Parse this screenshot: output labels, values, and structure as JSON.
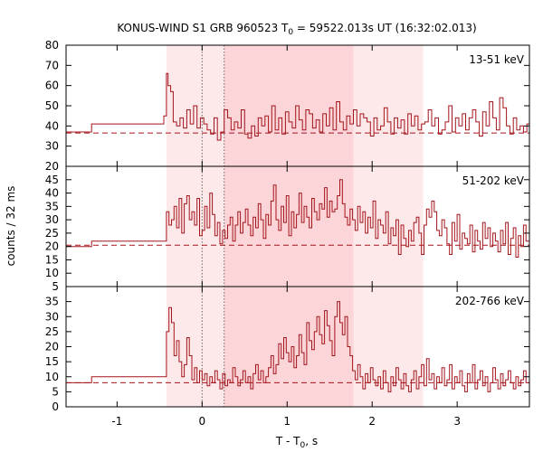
{
  "title": {
    "pre": "KONUS-WIND S1 GRB 960523 T",
    "sub": "0",
    "post": " = 59522.013s UT (16:32:02.013)"
  },
  "ylabel": "counts / 32 ms",
  "xlabel": {
    "pre": "T - T",
    "sub": "0",
    "post": ", s"
  },
  "colors": {
    "curve": "#a4141c",
    "background_line": "#a4141c",
    "light_band": "#fde9ea",
    "dark_band": "#fbd5d8",
    "axis": "#000000",
    "marker": "#666666"
  },
  "chart_data": {
    "type": "line",
    "step": true,
    "x_range": [
      -1.6,
      3.85
    ],
    "x_ticks": [
      -1,
      0,
      1,
      2,
      3
    ],
    "x_tick_labels": [
      "-1",
      "0",
      "1",
      "2",
      "3"
    ],
    "bands": {
      "light": [
        -0.42,
        2.6
      ],
      "dark": [
        0.26,
        1.78
      ]
    },
    "markers_x": [
      0,
      0.26
    ],
    "panels": [
      {
        "name": "13-51 keV",
        "ylim": [
          20,
          80
        ],
        "yticks": [
          20,
          30,
          40,
          50,
          60,
          70,
          80
        ],
        "background": 36.5,
        "x": [
          -1.6,
          -1.3,
          -0.45,
          -0.42,
          -0.4,
          -0.37,
          -0.34,
          -0.3,
          -0.26,
          -0.22,
          -0.18,
          -0.14,
          -0.1,
          -0.06,
          -0.02,
          0.02,
          0.06,
          0.1,
          0.14,
          0.18,
          0.22,
          0.26,
          0.3,
          0.34,
          0.38,
          0.42,
          0.46,
          0.5,
          0.54,
          0.58,
          0.62,
          0.66,
          0.7,
          0.74,
          0.78,
          0.82,
          0.86,
          0.9,
          0.94,
          0.98,
          1.02,
          1.06,
          1.1,
          1.14,
          1.18,
          1.22,
          1.26,
          1.3,
          1.34,
          1.38,
          1.42,
          1.46,
          1.5,
          1.54,
          1.58,
          1.62,
          1.66,
          1.7,
          1.74,
          1.78,
          1.82,
          1.86,
          1.9,
          1.94,
          1.98,
          2.02,
          2.06,
          2.1,
          2.14,
          2.18,
          2.22,
          2.26,
          2.3,
          2.34,
          2.38,
          2.42,
          2.46,
          2.5,
          2.54,
          2.58,
          2.62,
          2.66,
          2.7,
          2.74,
          2.78,
          2.82,
          2.86,
          2.9,
          2.94,
          2.98,
          3.02,
          3.06,
          3.1,
          3.14,
          3.18,
          3.22,
          3.26,
          3.3,
          3.34,
          3.38,
          3.42,
          3.46,
          3.5,
          3.54,
          3.58,
          3.62,
          3.66,
          3.7,
          3.74,
          3.78,
          3.82
        ],
        "y": [
          37,
          41,
          45,
          66,
          60,
          57,
          42,
          40,
          44,
          39,
          48,
          41,
          50,
          39,
          44,
          41,
          38,
          36,
          44,
          33,
          37,
          48,
          44,
          38,
          42,
          39,
          48,
          36,
          34,
          40,
          35,
          44,
          40,
          45,
          37,
          50,
          38,
          44,
          36,
          47,
          42,
          39,
          50,
          43,
          38,
          48,
          46,
          39,
          43,
          37,
          46,
          40,
          49,
          38,
          52,
          42,
          38,
          45,
          41,
          48,
          40,
          46,
          44,
          42,
          35,
          44,
          38,
          40,
          49,
          42,
          36,
          44,
          39,
          43,
          36,
          46,
          40,
          45,
          38,
          41,
          42,
          48,
          40,
          44,
          36,
          38,
          42,
          50,
          37,
          44,
          40,
          46,
          38,
          44,
          48,
          42,
          35,
          47,
          40,
          52,
          44,
          38,
          54,
          49,
          40,
          36,
          44,
          38,
          40,
          37,
          41
        ]
      },
      {
        "name": "51-202 keV",
        "ylim": [
          5,
          50
        ],
        "yticks": [
          5,
          10,
          15,
          20,
          25,
          30,
          35,
          40,
          45
        ],
        "background": 20.5,
        "x": [
          -1.6,
          -1.3,
          -0.45,
          -0.42,
          -0.39,
          -0.36,
          -0.33,
          -0.3,
          -0.27,
          -0.24,
          -0.21,
          -0.18,
          -0.15,
          -0.12,
          -0.09,
          -0.06,
          -0.03,
          0.0,
          0.03,
          0.06,
          0.09,
          0.12,
          0.15,
          0.18,
          0.21,
          0.24,
          0.27,
          0.3,
          0.33,
          0.36,
          0.39,
          0.42,
          0.45,
          0.48,
          0.51,
          0.54,
          0.57,
          0.6,
          0.63,
          0.66,
          0.69,
          0.72,
          0.75,
          0.78,
          0.81,
          0.84,
          0.87,
          0.9,
          0.93,
          0.96,
          0.99,
          1.02,
          1.05,
          1.08,
          1.11,
          1.14,
          1.17,
          1.2,
          1.23,
          1.26,
          1.29,
          1.32,
          1.35,
          1.38,
          1.41,
          1.44,
          1.47,
          1.5,
          1.53,
          1.56,
          1.59,
          1.62,
          1.65,
          1.68,
          1.71,
          1.74,
          1.77,
          1.8,
          1.83,
          1.86,
          1.89,
          1.92,
          1.95,
          1.98,
          2.01,
          2.04,
          2.07,
          2.1,
          2.13,
          2.16,
          2.19,
          2.22,
          2.25,
          2.28,
          2.31,
          2.34,
          2.37,
          2.4,
          2.43,
          2.46,
          2.49,
          2.52,
          2.55,
          2.58,
          2.61,
          2.64,
          2.67,
          2.7,
          2.73,
          2.76,
          2.79,
          2.82,
          2.85,
          2.88,
          2.91,
          2.94,
          2.97,
          3.0,
          3.03,
          3.06,
          3.09,
          3.12,
          3.15,
          3.18,
          3.21,
          3.24,
          3.27,
          3.3,
          3.33,
          3.36,
          3.39,
          3.42,
          3.45,
          3.48,
          3.51,
          3.54,
          3.57,
          3.6,
          3.63,
          3.66,
          3.69,
          3.72,
          3.75,
          3.78,
          3.81
        ],
        "y": [
          20,
          22,
          22,
          33,
          28,
          30,
          35,
          27,
          38,
          25,
          36,
          39,
          30,
          33,
          28,
          38,
          24,
          26,
          35,
          27,
          40,
          32,
          24,
          29,
          21,
          26,
          23,
          28,
          31,
          22,
          28,
          33,
          25,
          29,
          34,
          28,
          24,
          31,
          27,
          36,
          30,
          23,
          32,
          28,
          37,
          43,
          30,
          26,
          35,
          29,
          39,
          24,
          33,
          27,
          32,
          40,
          29,
          35,
          31,
          27,
          38,
          33,
          30,
          36,
          34,
          42,
          31,
          37,
          33,
          34,
          39,
          45,
          36,
          31,
          28,
          34,
          30,
          26,
          35,
          29,
          33,
          25,
          31,
          27,
          37,
          23,
          30,
          28,
          25,
          33,
          21,
          27,
          24,
          30,
          17,
          28,
          23,
          20,
          26,
          22,
          29,
          31,
          25,
          17,
          28,
          34,
          31,
          37,
          33,
          26,
          24,
          30,
          27,
          21,
          17,
          29,
          22,
          32,
          19,
          25,
          23,
          21,
          28,
          18,
          26,
          22,
          19,
          29,
          23,
          27,
          20,
          25,
          22,
          18,
          26,
          21,
          29,
          17,
          23,
          27,
          16,
          24,
          20,
          28,
          22
        ]
      },
      {
        "name": "202-766 keV",
        "ylim": [
          0,
          40
        ],
        "yticks": [
          0,
          5,
          10,
          15,
          20,
          25,
          30,
          35
        ],
        "background": 8,
        "x": [
          -1.6,
          -1.3,
          -0.45,
          -0.42,
          -0.39,
          -0.36,
          -0.33,
          -0.3,
          -0.27,
          -0.24,
          -0.21,
          -0.18,
          -0.15,
          -0.12,
          -0.09,
          -0.06,
          -0.03,
          0.0,
          0.03,
          0.06,
          0.09,
          0.12,
          0.15,
          0.18,
          0.21,
          0.24,
          0.27,
          0.3,
          0.33,
          0.36,
          0.39,
          0.42,
          0.45,
          0.48,
          0.51,
          0.54,
          0.57,
          0.6,
          0.63,
          0.66,
          0.69,
          0.72,
          0.75,
          0.78,
          0.81,
          0.84,
          0.87,
          0.9,
          0.93,
          0.96,
          0.99,
          1.02,
          1.05,
          1.08,
          1.11,
          1.14,
          1.17,
          1.2,
          1.23,
          1.26,
          1.29,
          1.32,
          1.35,
          1.38,
          1.41,
          1.44,
          1.47,
          1.5,
          1.53,
          1.56,
          1.59,
          1.62,
          1.65,
          1.68,
          1.71,
          1.74,
          1.77,
          1.8,
          1.83,
          1.86,
          1.89,
          1.92,
          1.95,
          1.98,
          2.01,
          2.04,
          2.07,
          2.1,
          2.13,
          2.16,
          2.19,
          2.22,
          2.25,
          2.28,
          2.31,
          2.34,
          2.37,
          2.4,
          2.43,
          2.46,
          2.49,
          2.52,
          2.55,
          2.58,
          2.61,
          2.64,
          2.67,
          2.7,
          2.73,
          2.76,
          2.79,
          2.82,
          2.85,
          2.88,
          2.91,
          2.94,
          2.97,
          3.0,
          3.03,
          3.06,
          3.09,
          3.12,
          3.15,
          3.18,
          3.21,
          3.24,
          3.27,
          3.3,
          3.33,
          3.36,
          3.39,
          3.42,
          3.45,
          3.48,
          3.51,
          3.54,
          3.57,
          3.6,
          3.63,
          3.66,
          3.69,
          3.72,
          3.75,
          3.78,
          3.81
        ],
        "y": [
          8,
          10,
          10,
          25,
          33,
          28,
          17,
          22,
          15,
          10,
          14,
          23,
          17,
          9,
          13,
          8,
          12,
          9,
          11,
          7,
          10,
          8,
          12,
          9,
          6,
          11,
          7,
          9,
          8,
          13,
          10,
          7,
          9,
          12,
          8,
          10,
          6,
          11,
          14,
          9,
          12,
          8,
          10,
          13,
          17,
          11,
          14,
          21,
          16,
          23,
          18,
          15,
          20,
          13,
          17,
          24,
          18,
          14,
          28,
          22,
          19,
          25,
          30,
          24,
          21,
          32,
          27,
          22,
          17,
          30,
          35,
          28,
          24,
          30,
          20,
          17,
          12,
          9,
          14,
          10,
          6,
          11,
          8,
          13,
          9,
          7,
          10,
          6,
          12,
          8,
          5,
          10,
          7,
          13,
          9,
          6,
          11,
          7,
          5,
          9,
          12,
          6,
          10,
          14,
          7,
          16,
          9,
          11,
          6,
          10,
          8,
          13,
          7,
          9,
          14,
          6,
          10,
          8,
          12,
          7,
          5,
          11,
          8,
          14,
          6,
          9,
          12,
          7,
          10,
          5,
          8,
          13,
          9,
          6,
          11,
          7,
          9,
          12,
          8,
          6,
          10,
          7,
          9,
          12,
          8
        ]
      }
    ]
  }
}
